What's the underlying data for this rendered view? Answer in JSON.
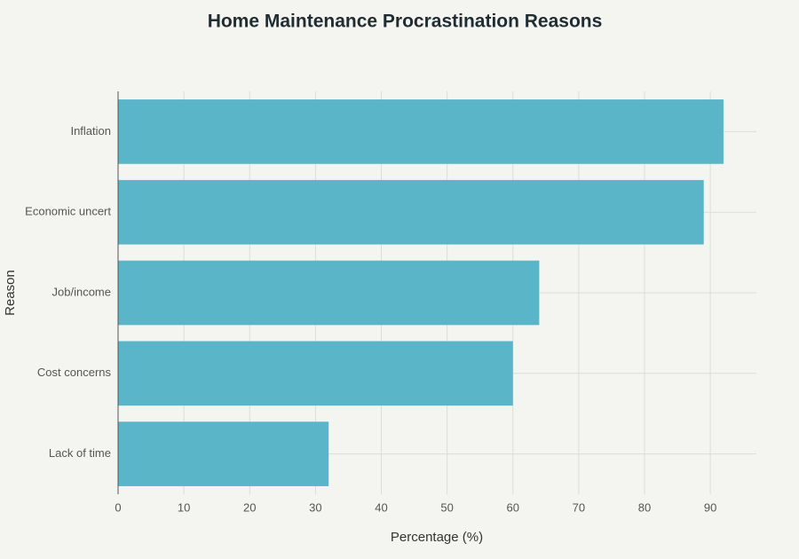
{
  "chart_data": {
    "type": "bar",
    "orientation": "horizontal",
    "title": "Home Maintenance Procrastination Reasons",
    "x_label": "Percentage (%)",
    "y_label": "Reason",
    "categories": [
      "Inflation",
      "Economic uncert",
      "Job/income",
      "Cost concerns",
      "Lack of time"
    ],
    "values": [
      92,
      89,
      64,
      60,
      32
    ],
    "color": "#5ab5c9",
    "xlim": [
      0,
      97
    ],
    "xticks": [
      0,
      10,
      20,
      30,
      40,
      50,
      60,
      70,
      80,
      90
    ],
    "grid": true
  }
}
